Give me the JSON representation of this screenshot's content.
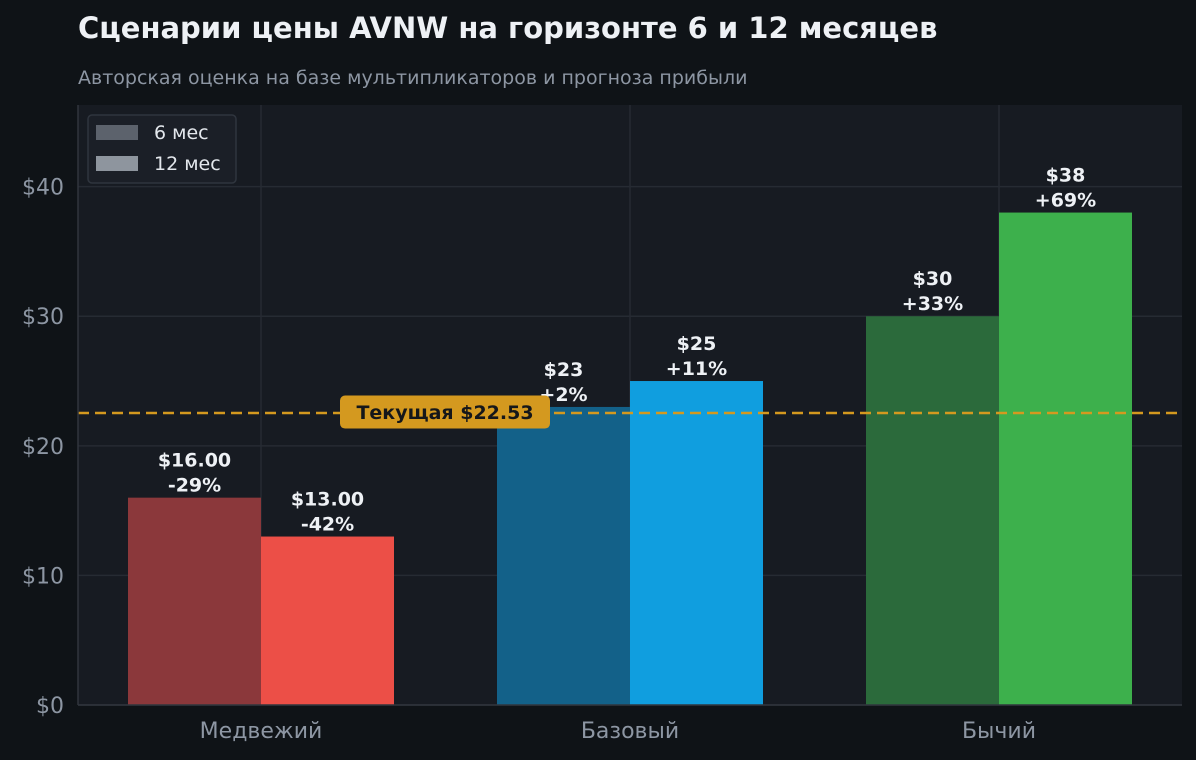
{
  "chart_data": {
    "type": "bar",
    "title": "Сценарии цены AVNW на горизонте 6 и 12 месяцев",
    "subtitle": "Авторская оценка на базе мультипликаторов и прогноза прибыли",
    "categories": [
      "Медвежий",
      "Базовый",
      "Бычий"
    ],
    "series": [
      {
        "name": "6 мес",
        "values": [
          16,
          23,
          30
        ],
        "labels": [
          [
            "$16.00",
            "-29%"
          ],
          [
            "$23",
            "+2%"
          ],
          [
            "$30",
            "+33%"
          ]
        ],
        "colors": [
          "#8b383b",
          "#136189",
          "#2b6a3b"
        ]
      },
      {
        "name": "12 мес",
        "values": [
          13,
          25,
          38
        ],
        "labels": [
          [
            "$13.00",
            "-42%"
          ],
          [
            "$25",
            "+11%"
          ],
          [
            "$38",
            "+69%"
          ]
        ],
        "colors": [
          "#ec4f47",
          "#109edf",
          "#3db04c"
        ]
      }
    ],
    "legend": {
      "placement": "top-left",
      "colors": [
        "#5c626c",
        "#8e959e"
      ]
    },
    "reference_line": {
      "value": 22.53,
      "label": "Текущая $22.53",
      "color": "#d4991f"
    },
    "yticks": [
      0,
      10,
      20,
      30,
      40
    ],
    "ytick_labels": [
      "$0",
      "$10",
      "$20",
      "$30",
      "$40"
    ],
    "ylim": [
      0,
      46.3
    ],
    "grid": true,
    "colors": {
      "figure_background": "#0f1317",
      "plot_background": "#171b22",
      "grid": "#262b33",
      "text": "#eef1f5",
      "muted_text": "#8d96a3"
    }
  }
}
